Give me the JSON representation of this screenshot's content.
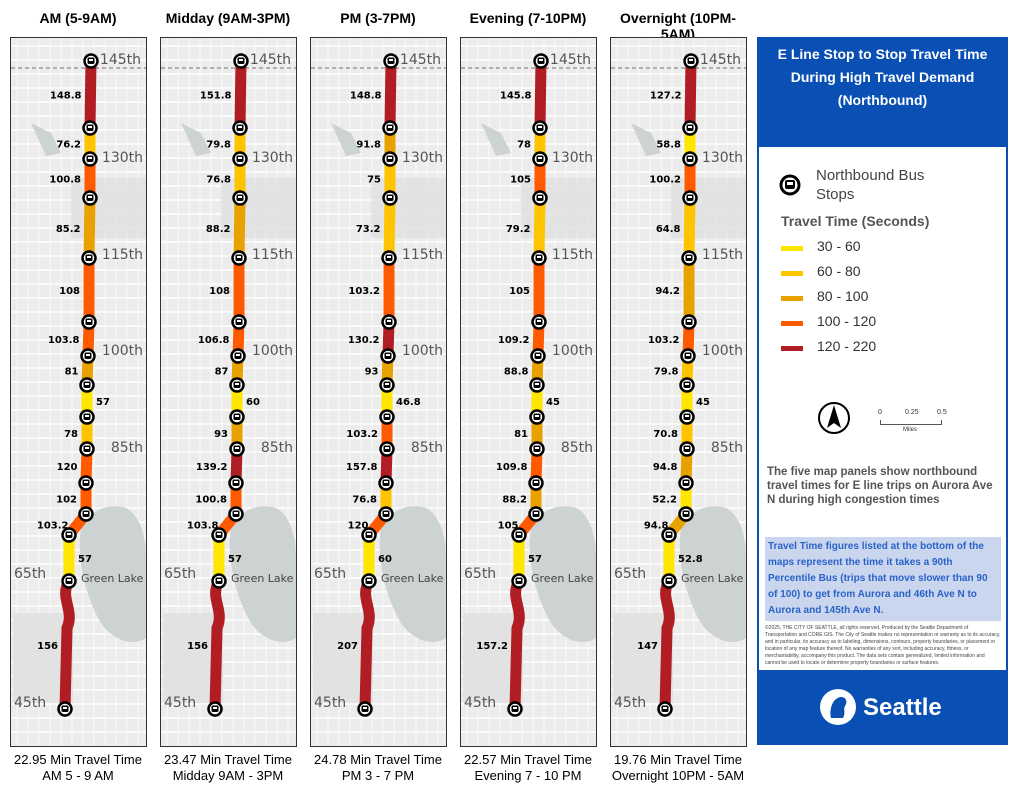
{
  "legend_colors": {
    "30-60": "#ffe600",
    "60-80": "#ffc400",
    "80-100": "#e8a200",
    "100-120": "#ff5a00",
    "120-220": "#b01e24"
  },
  "streets": {
    "s145": "145th",
    "s130": "130th",
    "s115": "115th",
    "s100": "100th",
    "s85": "85th",
    "s65": "65th",
    "s45": "45th",
    "lake": "Green Lake"
  },
  "panels": [
    {
      "title": "AM (5-9AM)",
      "foot1": "22.95 Min Travel Time",
      "foot2": "AM 5 - 9 AM",
      "values": [
        148.8,
        76.2,
        100.8,
        85.2,
        108,
        103.8,
        81,
        57,
        78,
        120,
        102,
        103.2,
        57,
        156
      ]
    },
    {
      "title": "Midday (9AM-3PM)",
      "foot1": "23.47 Min Travel Time",
      "foot2": "Midday 9AM - 3PM",
      "values": [
        151.8,
        79.8,
        76.8,
        88.2,
        108,
        106.8,
        87,
        60,
        93,
        139.2,
        100.8,
        103.8,
        57,
        156
      ]
    },
    {
      "title": "PM (3-7PM)",
      "foot1": "24.78 Min Travel Time",
      "foot2": "PM 3 - 7 PM",
      "values": [
        148.8,
        91.8,
        75,
        73.2,
        103.2,
        130.2,
        93,
        46.8,
        103.2,
        157.8,
        76.8,
        120,
        60,
        207
      ]
    },
    {
      "title": "Evening (7-10PM)",
      "foot1": "22.57 Min Travel Time",
      "foot2": "Evening 7 - 10 PM",
      "values": [
        145.8,
        78,
        105,
        79.2,
        105,
        109.2,
        88.8,
        45,
        81,
        109.8,
        88.2,
        105,
        57,
        157.2
      ]
    },
    {
      "title": "Overnight (10PM-5AM)",
      "foot1": "19.76 Min Travel Time",
      "foot2": "Overnight 10PM - 5AM",
      "values": [
        127.2,
        58.8,
        100.2,
        64.8,
        94.2,
        103.2,
        79.8,
        45,
        70.8,
        94.8,
        52.2,
        94.8,
        52.8,
        147
      ]
    }
  ],
  "sidebar": {
    "title1": "E Line Stop to Stop Travel Time",
    "title2": "During High Travel Demand",
    "title3": "(Northbound)",
    "stops_label1": "Northbound Bus",
    "stops_label2": "Stops",
    "legend_title": "Travel Time (Seconds)",
    "ranges": [
      "30 - 60",
      "60 - 80",
      "80 - 100",
      "100 - 120",
      "120 - 220"
    ],
    "scale": [
      "0",
      "0.25",
      "0.5"
    ],
    "scale_unit": "Miles",
    "description": "The five map panels show northbound travel times for E line trips on Aurora Ave N during high congestion times",
    "note": "Travel Time figures listed at the bottom of the maps represent the time it takes a 90th Percentile Bus (trips that move slower than 90 of 100) to get from Aurora and 46th Ave N to Aurora and 145th Ave N.",
    "copyright": "©2025, THE CITY OF SEATTLE, all rights reserved. Produced by the Seattle Department of Transportation and CORE GIS. The City of Seattle makes no representation or warranty as to its accuracy, and in particular, its accuracy as to labeling, dimensions, contours, property boundaries, or placement or location of any map feature thereof. No warranties of any sort, including accuracy, fitness, or merchantability, accompany this product. The data sets contain generalized, limited information and cannot be used to locate or determine property boundaries or surface features.",
    "logo": "Seattle"
  }
}
